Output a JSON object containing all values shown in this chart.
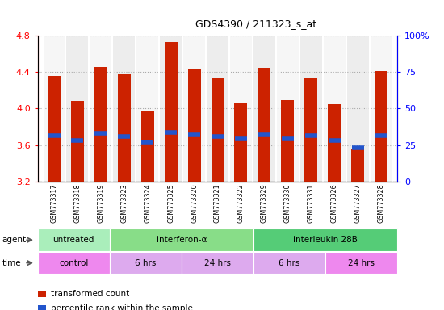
{
  "title": "GDS4390 / 211323_s_at",
  "samples": [
    "GSM773317",
    "GSM773318",
    "GSM773319",
    "GSM773323",
    "GSM773324",
    "GSM773325",
    "GSM773320",
    "GSM773321",
    "GSM773322",
    "GSM773329",
    "GSM773330",
    "GSM773331",
    "GSM773326",
    "GSM773327",
    "GSM773328"
  ],
  "bar_values": [
    4.36,
    4.08,
    4.46,
    4.38,
    3.97,
    4.73,
    4.43,
    4.33,
    4.07,
    4.45,
    4.09,
    4.34,
    4.05,
    3.55,
    4.41
  ],
  "blue_marker_values": [
    3.7,
    3.65,
    3.73,
    3.69,
    3.63,
    3.74,
    3.71,
    3.69,
    3.67,
    3.71,
    3.67,
    3.7,
    3.65,
    3.57,
    3.7
  ],
  "bar_bottom": 3.2,
  "ylim_left": [
    3.2,
    4.8
  ],
  "ylim_right": [
    0,
    100
  ],
  "yticks_left": [
    3.2,
    3.6,
    4.0,
    4.4,
    4.8
  ],
  "yticks_right": [
    0,
    25,
    50,
    75,
    100
  ],
  "bar_color": "#cc2200",
  "blue_marker_color": "#2255cc",
  "agent_groups": [
    {
      "label": "untreated",
      "start": 0,
      "end": 3,
      "color": "#aaeebb"
    },
    {
      "label": "interferon-α",
      "start": 3,
      "end": 9,
      "color": "#88dd88"
    },
    {
      "label": "interleukin 28B",
      "start": 9,
      "end": 15,
      "color": "#55cc77"
    }
  ],
  "time_groups": [
    {
      "label": "control",
      "start": 0,
      "end": 3,
      "color": "#ee88ee"
    },
    {
      "label": "6 hrs",
      "start": 3,
      "end": 6,
      "color": "#ddaaee"
    },
    {
      "label": "24 hrs",
      "start": 6,
      "end": 9,
      "color": "#ddaaee"
    },
    {
      "label": "6 hrs",
      "start": 9,
      "end": 12,
      "color": "#ddaaee"
    },
    {
      "label": "24 hrs",
      "start": 12,
      "end": 15,
      "color": "#ee88ee"
    }
  ],
  "agent_row_label": "agent",
  "time_row_label": "time",
  "legend_items": [
    {
      "label": "transformed count",
      "color": "#cc2200"
    },
    {
      "label": "percentile rank within the sample",
      "color": "#2255cc"
    }
  ],
  "grid_color": "#aaaaaa",
  "col_sep_color": "#ffffff",
  "col_bg_even": "#eeeeee",
  "col_bg_odd": "#dddddd"
}
